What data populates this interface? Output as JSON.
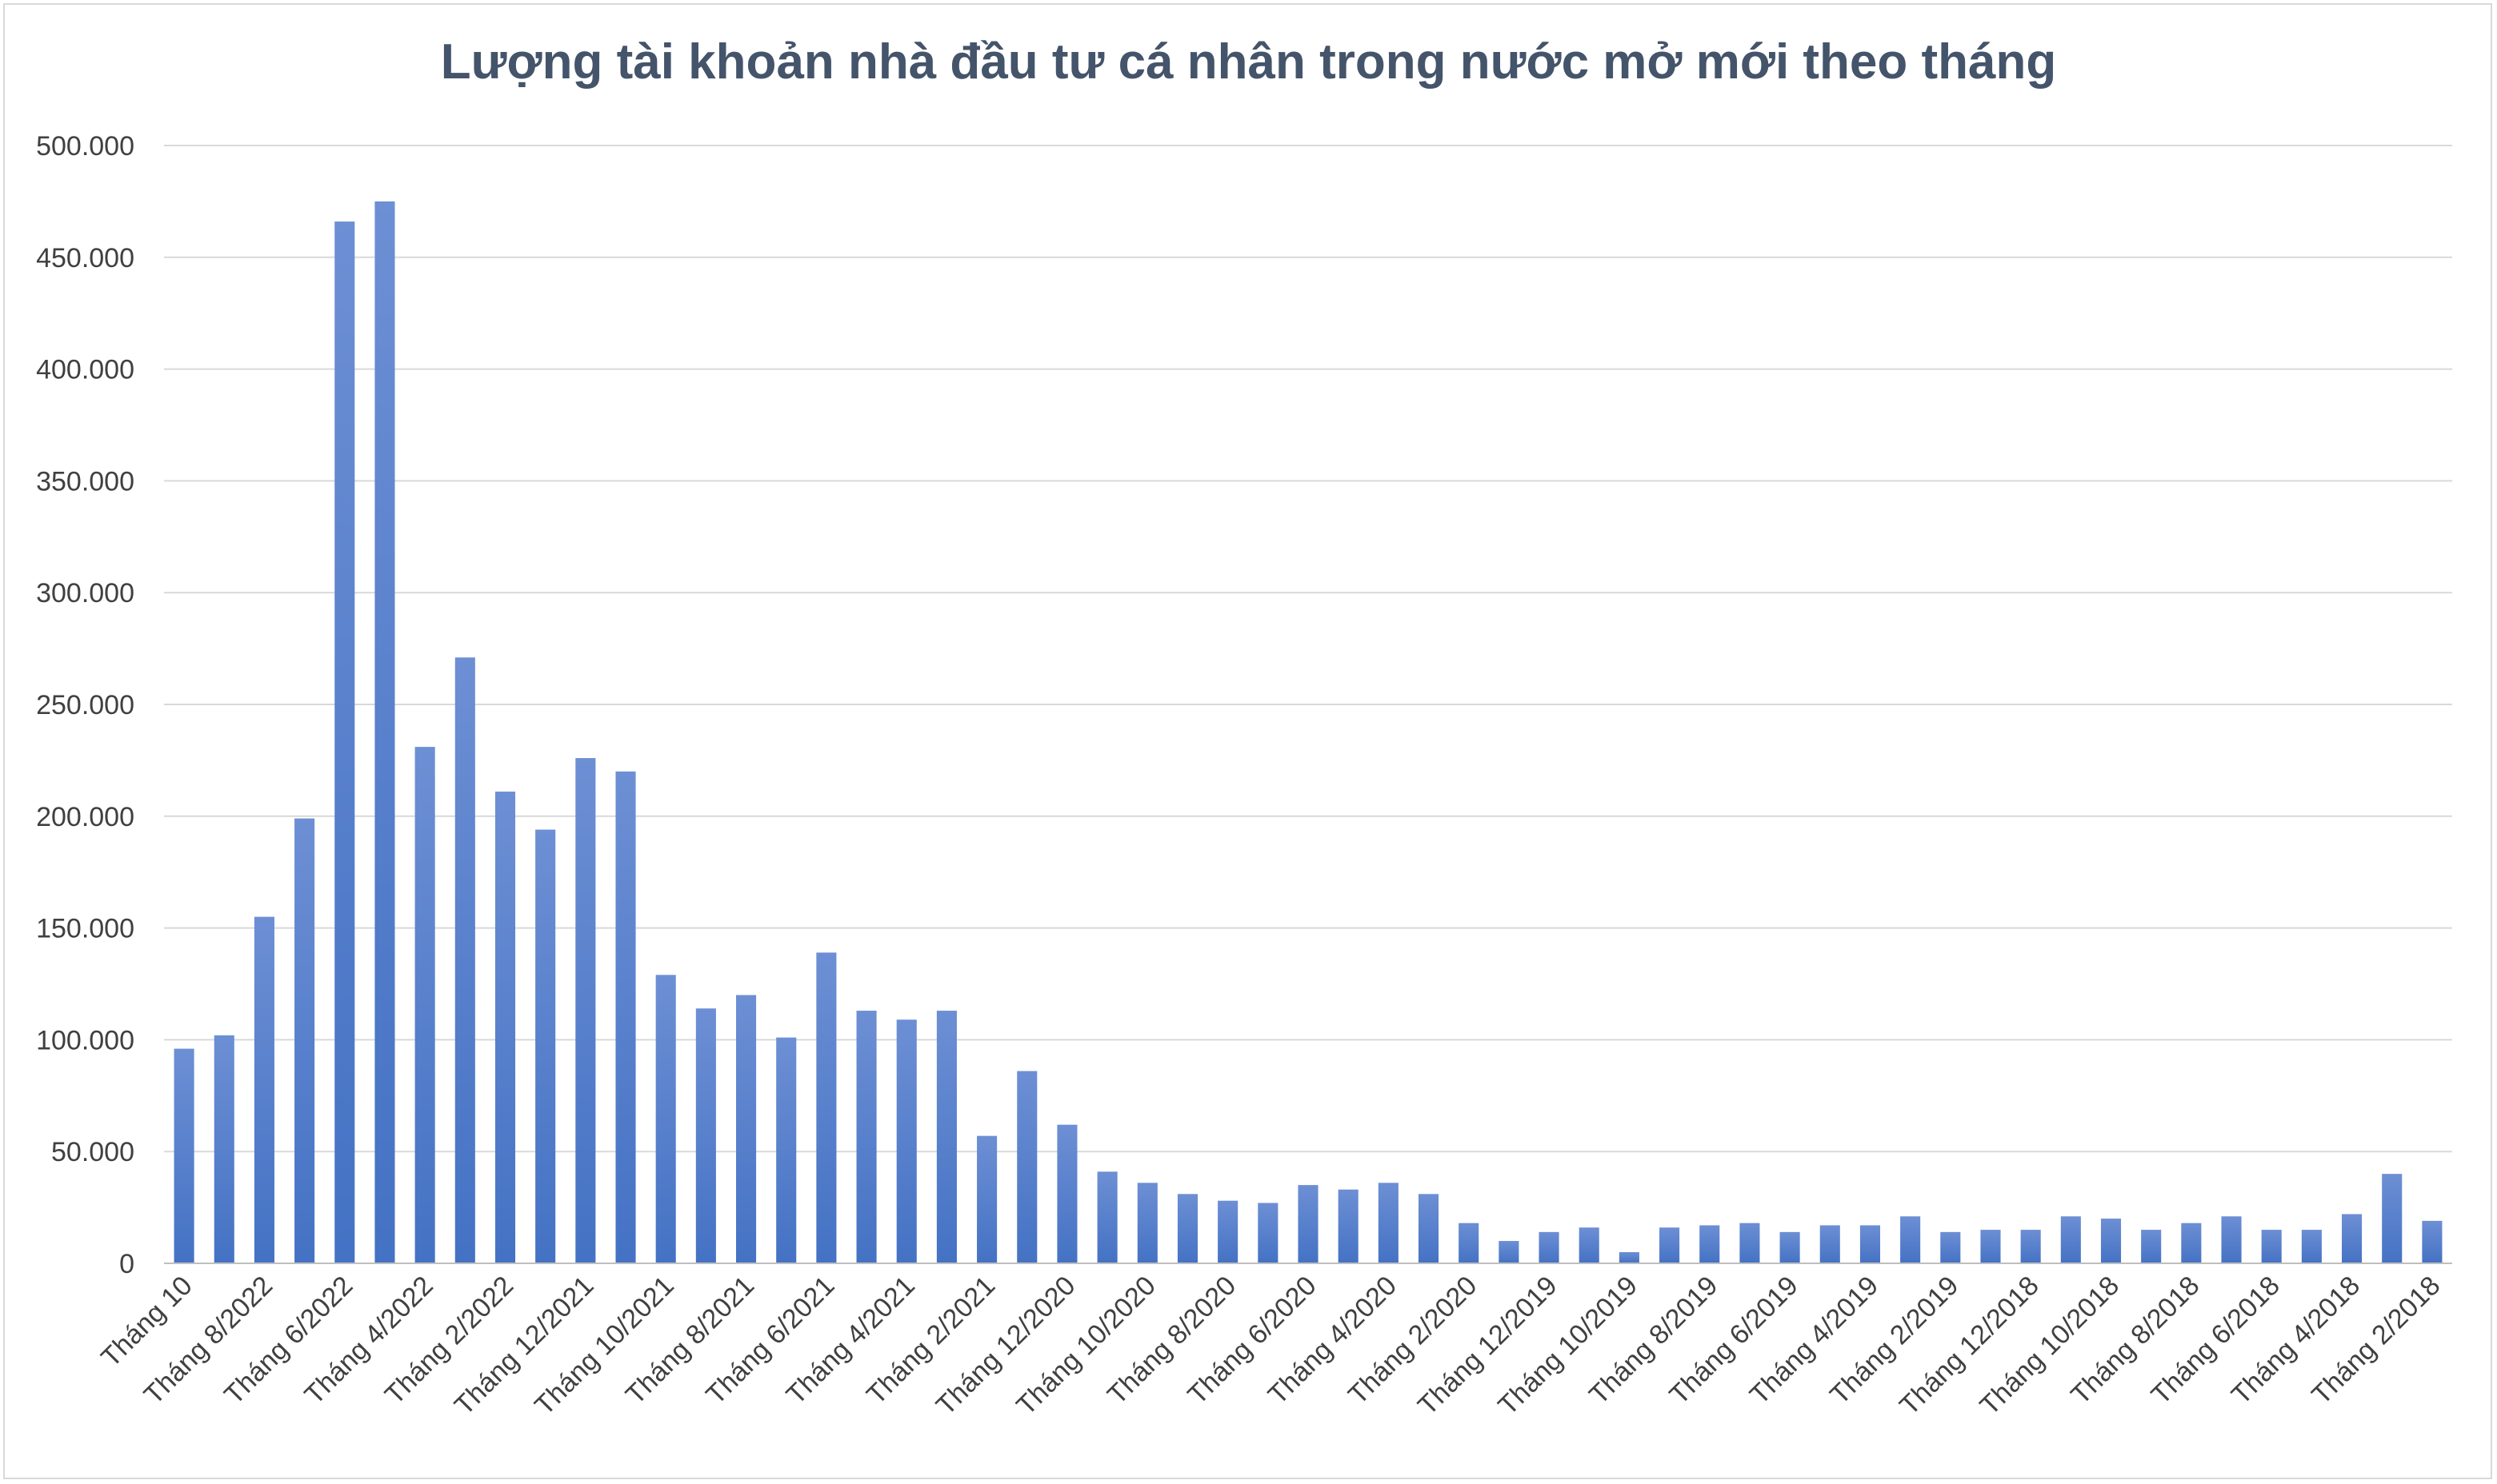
{
  "chart_data": {
    "type": "bar",
    "title": "Lượng tài khoản nhà đầu tư cá nhân trong nước mở mới theo tháng",
    "xlabel": "",
    "ylabel": "",
    "ylim": [
      0,
      500000
    ],
    "yticks": [
      0,
      50000,
      100000,
      150000,
      200000,
      250000,
      300000,
      350000,
      400000,
      450000,
      500000
    ],
    "ytick_labels": [
      "0",
      "50.000",
      "100.000",
      "150.000",
      "200.000",
      "250.000",
      "300.000",
      "350.000",
      "400.000",
      "450.000",
      "500.000"
    ],
    "grid": true,
    "legend": "none",
    "bar_color": "#4472c4",
    "categories": [
      "Tháng 10",
      "Tháng 9/2022",
      "Tháng 8/2022",
      "Tháng 7/2022",
      "Tháng 6/2022",
      "Tháng 5/2022",
      "Tháng 4/2022",
      "Tháng 3/2022",
      "Tháng 2/2022",
      "Tháng 1/2022",
      "Tháng 12/2021",
      "Tháng 11/2021",
      "Tháng 10/2021",
      "Tháng 9/2021",
      "Tháng 8/2021",
      "Tháng 7/2021",
      "Tháng 6/2021",
      "Tháng 5/2021",
      "Tháng 4/2021",
      "Tháng 3/2021",
      "Tháng 2/2021",
      "Tháng 1/2021",
      "Tháng 12/2020",
      "Tháng 11/2020",
      "Tháng 10/2020",
      "Tháng 9/2020",
      "Tháng 8/2020",
      "Tháng 7/2020",
      "Tháng 6/2020",
      "Tháng 5/2020",
      "Tháng 4/2020",
      "Tháng 3/2020",
      "Tháng 2/2020",
      "Tháng 1/2020",
      "Tháng 12/2019",
      "Tháng 11/2019",
      "Tháng 10/2019",
      "Tháng 9/2019",
      "Tháng 8/2019",
      "Tháng 7/2019",
      "Tháng 6/2019",
      "Tháng 5/2019",
      "Tháng 4/2019",
      "Tháng 3/2019",
      "Tháng 2/2019",
      "Tháng 1/2019",
      "Tháng 12/2018",
      "Tháng 11/2018",
      "Tháng 10/2018",
      "Tháng 9/2018",
      "Tháng 8/2018",
      "Tháng 7/2018",
      "Tháng 6/2018",
      "Tháng 5/2018",
      "Tháng 4/2018",
      "Tháng 3/2018",
      "Tháng 2/2018"
    ],
    "visible_tick_labels": [
      "Tháng 10",
      "Tháng 8/2022",
      "Tháng 6/2022",
      "Tháng 4/2022",
      "Tháng 2/2022",
      "Tháng 12/2021",
      "Tháng 10/2021",
      "Tháng 8/2021",
      "Tháng 6/2021",
      "Tháng 4/2021",
      "Tháng 2/2021",
      "Tháng 12/2020",
      "Tháng 10/2020",
      "Tháng 8/2020",
      "Tháng 6/2020",
      "Tháng 4/2020",
      "Tháng 2/2020",
      "Tháng 12/2019",
      "Tháng 10/2019",
      "Tháng 8/2019",
      "Tháng 6/2019",
      "Tháng 4/2019",
      "Tháng 2/2019",
      "Tháng 12/2018",
      "Tháng 10/2018",
      "Tháng 8/2018",
      "Tháng 6/2018",
      "Tháng 4/2018",
      "Tháng 2/2018"
    ],
    "values": [
      96000,
      102000,
      155000,
      199000,
      466000,
      475000,
      231000,
      271000,
      211000,
      194000,
      226000,
      220000,
      129000,
      114000,
      120000,
      101000,
      139000,
      113000,
      109000,
      113000,
      57000,
      86000,
      62000,
      41000,
      36000,
      31000,
      28000,
      27000,
      35000,
      33000,
      36000,
      31000,
      18000,
      10000,
      14000,
      16000,
      5000,
      16000,
      17000,
      18000,
      14000,
      17000,
      17000,
      21000,
      14000,
      15000,
      15000,
      21000,
      20000,
      15000,
      18000,
      21000,
      15000,
      15000,
      22000,
      40000,
      19000
    ]
  }
}
